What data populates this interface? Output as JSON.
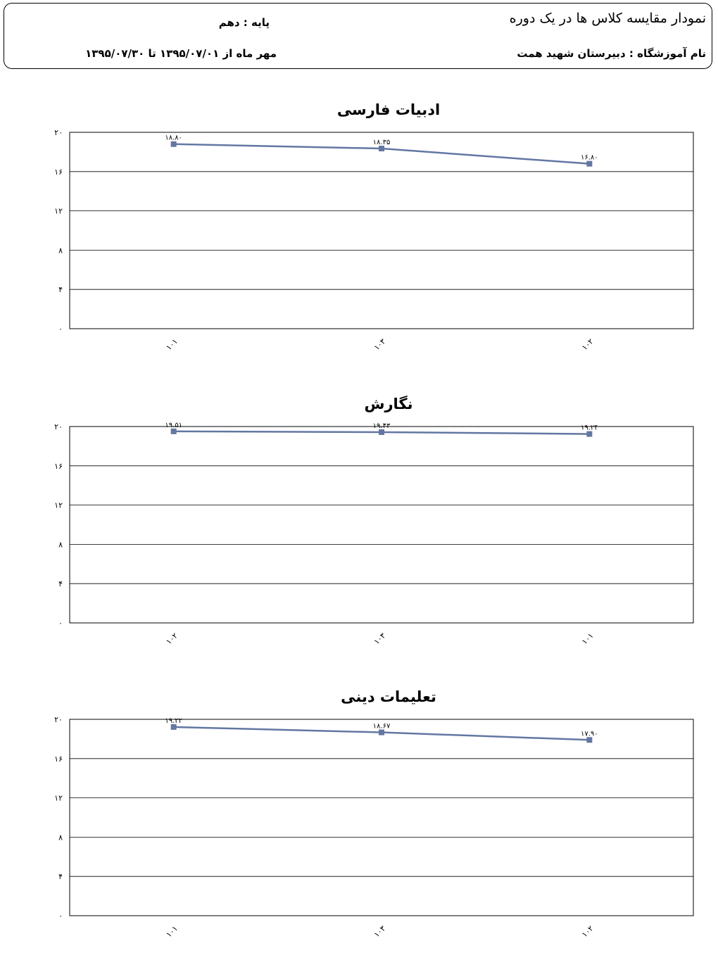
{
  "header": {
    "report_title": "نمودار مقایسه کلاس ها  در یک دوره",
    "grade": "پایه :  دهم",
    "school": "نام آموزشگاه :  دبیرستان شهید همت",
    "period": "مهر ماه  از ۱۳۹۵/۰۷/۰۱ تا ۱۳۹۵/۰۷/۳۰"
  },
  "colors": {
    "series": "#6377a2",
    "grid": "#000000"
  },
  "chart_data": [
    {
      "type": "line",
      "title": "ادبیات فارسی",
      "categories": [
        "۱۰۱",
        "۱۰۳",
        "۱۰۲"
      ],
      "values": [
        18.8,
        18.35,
        16.8
      ],
      "data_labels": [
        "۱۸.۸۰",
        "۱۸.۳۵",
        "۱۶.۸۰"
      ],
      "yticks": [
        "۰",
        "۴",
        "۸",
        "۱۲",
        "۱۶",
        "۲۰"
      ],
      "ylim": [
        0,
        20
      ],
      "grid": true
    },
    {
      "type": "line",
      "title": "نگارش",
      "categories": [
        "۱۰۲",
        "۱۰۳",
        "۱۰۱"
      ],
      "values": [
        19.51,
        19.43,
        19.24
      ],
      "data_labels": [
        "۱۹.۵۱",
        "۱۹.۴۳",
        "۱۹.۲۴"
      ],
      "yticks": [
        "۰",
        "۴",
        "۸",
        "۱۲",
        "۱۶",
        "۲۰"
      ],
      "ylim": [
        0,
        20
      ],
      "grid": true
    },
    {
      "type": "line",
      "title": "تعلیمات دینی",
      "categories": [
        "۱۰۱",
        "۱۰۳",
        "۱۰۲"
      ],
      "values": [
        19.22,
        18.67,
        17.9
      ],
      "data_labels": [
        "۱۹.۲۲",
        "۱۸.۶۷",
        "۱۷.۹۰"
      ],
      "yticks": [
        "۰",
        "۴",
        "۸",
        "۱۲",
        "۱۶",
        "۲۰"
      ],
      "ylim": [
        0,
        20
      ],
      "grid": true
    }
  ]
}
